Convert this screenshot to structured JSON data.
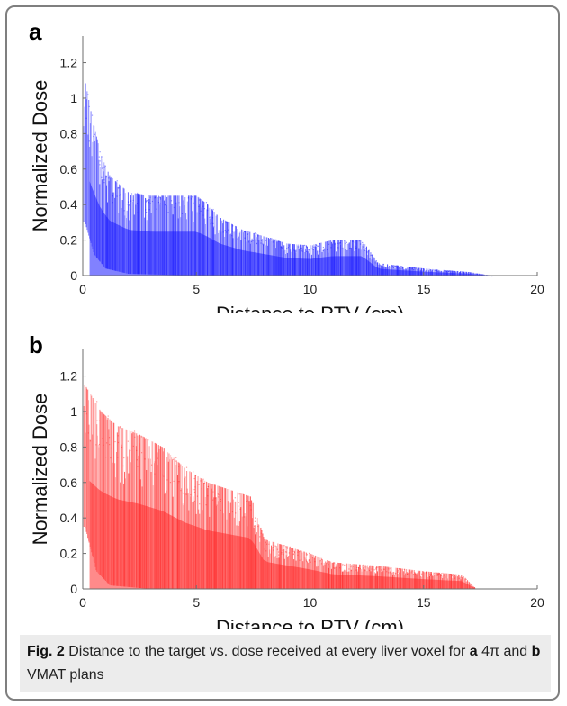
{
  "caption": {
    "label": "Fig. 2",
    "text_1": " Distance to the target vs. dose received at every liver voxel for ",
    "a_letter": "a",
    "text_2": " 4π and ",
    "b_letter": "b",
    "text_3": " VMAT plans"
  },
  "chart_data": [
    {
      "panel": "a",
      "type": "scatter",
      "color": "#1a1aff",
      "xlabel": "Distance to PTV (cm)",
      "ylabel": "Normalized Dose",
      "xlim": [
        0,
        20
      ],
      "ylim": [
        0,
        1.35
      ],
      "xticks": [
        0,
        5,
        10,
        15,
        20
      ],
      "yticks": [
        0,
        0.2,
        0.4,
        0.6,
        0.8,
        1,
        1.2
      ],
      "xtick_labels": [
        "0",
        "5",
        "10",
        "15",
        "20"
      ],
      "ytick_labels": [
        "0",
        "0.2",
        "0.4",
        "0.6",
        "0.8",
        "1",
        "1.2"
      ],
      "grid": false,
      "envelope_upper": [
        {
          "x": 0.1,
          "y": 1.1
        },
        {
          "x": 0.4,
          "y": 0.9
        },
        {
          "x": 0.8,
          "y": 0.68
        },
        {
          "x": 1.2,
          "y": 0.56
        },
        {
          "x": 2.0,
          "y": 0.47
        },
        {
          "x": 3.0,
          "y": 0.45
        },
        {
          "x": 4.0,
          "y": 0.45
        },
        {
          "x": 5.0,
          "y": 0.45
        },
        {
          "x": 5.5,
          "y": 0.4
        },
        {
          "x": 6.0,
          "y": 0.33
        },
        {
          "x": 7.0,
          "y": 0.26
        },
        {
          "x": 8.0,
          "y": 0.22
        },
        {
          "x": 9.0,
          "y": 0.18
        },
        {
          "x": 10.0,
          "y": 0.17
        },
        {
          "x": 11.0,
          "y": 0.2
        },
        {
          "x": 12.3,
          "y": 0.2
        },
        {
          "x": 13.0,
          "y": 0.07
        },
        {
          "x": 15.0,
          "y": 0.04
        },
        {
          "x": 17.0,
          "y": 0.02
        },
        {
          "x": 18.0,
          "y": 0.0
        }
      ],
      "envelope_lower": [
        {
          "x": 0.1,
          "y": 0.3
        },
        {
          "x": 0.5,
          "y": 0.12
        },
        {
          "x": 1.0,
          "y": 0.04
        },
        {
          "x": 2.0,
          "y": 0.01
        },
        {
          "x": 5.0,
          "y": 0.0
        },
        {
          "x": 18.0,
          "y": 0.0
        }
      ]
    },
    {
      "panel": "b",
      "type": "scatter",
      "color": "#ff2a2a",
      "xlabel": "Distance to PTV (cm)",
      "ylabel": "Normalized Dose",
      "xlim": [
        0,
        20
      ],
      "ylim": [
        0,
        1.35
      ],
      "xticks": [
        0,
        5,
        10,
        15,
        20
      ],
      "yticks": [
        0,
        0.2,
        0.4,
        0.6,
        0.8,
        1,
        1.2
      ],
      "xtick_labels": [
        "0",
        "5",
        "10",
        "15",
        "20"
      ],
      "ytick_labels": [
        "0",
        "0.2",
        "0.4",
        "0.6",
        "0.8",
        "1",
        "1.2"
      ],
      "grid": false,
      "envelope_upper": [
        {
          "x": 0.1,
          "y": 1.15
        },
        {
          "x": 0.8,
          "y": 1.0
        },
        {
          "x": 1.5,
          "y": 0.92
        },
        {
          "x": 2.5,
          "y": 0.87
        },
        {
          "x": 3.5,
          "y": 0.8
        },
        {
          "x": 4.5,
          "y": 0.68
        },
        {
          "x": 5.5,
          "y": 0.6
        },
        {
          "x": 7.4,
          "y": 0.52
        },
        {
          "x": 8.0,
          "y": 0.28
        },
        {
          "x": 9.0,
          "y": 0.24
        },
        {
          "x": 10.0,
          "y": 0.2
        },
        {
          "x": 11.0,
          "y": 0.15
        },
        {
          "x": 13.0,
          "y": 0.13
        },
        {
          "x": 15.0,
          "y": 0.1
        },
        {
          "x": 16.7,
          "y": 0.08
        },
        {
          "x": 17.3,
          "y": 0.0
        }
      ],
      "envelope_lower": [
        {
          "x": 0.1,
          "y": 0.35
        },
        {
          "x": 0.6,
          "y": 0.1
        },
        {
          "x": 1.2,
          "y": 0.02
        },
        {
          "x": 3.0,
          "y": 0.0
        },
        {
          "x": 17.3,
          "y": 0.0
        }
      ]
    }
  ]
}
